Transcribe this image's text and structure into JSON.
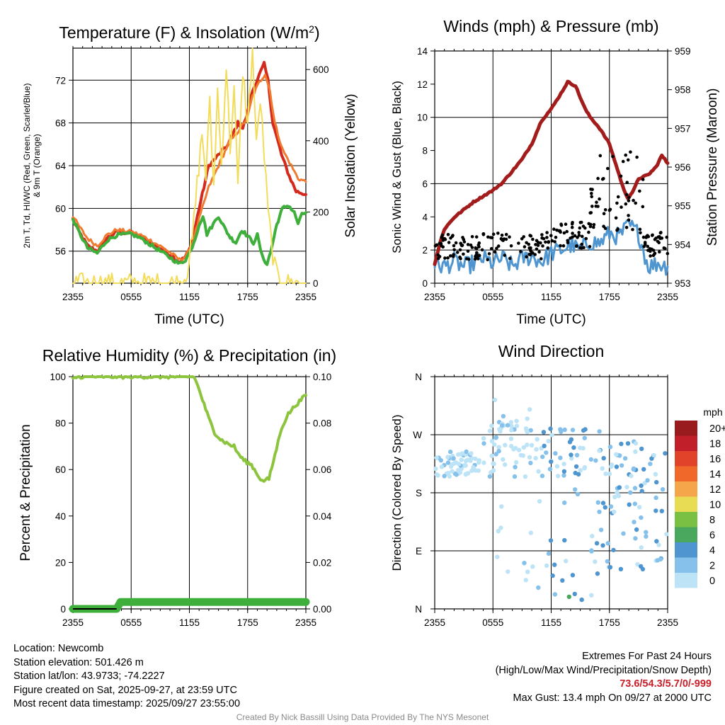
{
  "chart_data": [
    {
      "type": "line",
      "title": "Temperature (F) & Insolation (W/m2)",
      "title_main": "Temperature (F) & Insolation (W/m",
      "title_sup": "2",
      "title_end": ")",
      "xlabel": "Time (UTC)",
      "ylabel_left_lines": [
        "2m T, Td, HI/WC (Red, Green, Scarlet/Blue)",
        "& 9m T (Orange)"
      ],
      "ylabel_right": "Solar Insolation (Yellow)",
      "x_ticks": [
        "2355",
        "0555",
        "1155",
        "1755",
        "2355"
      ],
      "yticks_left": [
        56,
        60,
        64,
        68,
        72
      ],
      "yticks_right": [
        0,
        200,
        400,
        600
      ],
      "ylim_left": [
        53,
        75
      ],
      "ylim_right": [
        0,
        660
      ],
      "xlim_hours": [
        0,
        24
      ],
      "series": [
        {
          "name": "2m T",
          "axis": "left",
          "color": "#d42a1e",
          "width": 4,
          "points": [
            [
              0,
              59
            ],
            [
              0.5,
              58
            ],
            [
              1.5,
              56.5
            ],
            [
              2.5,
              56
            ],
            [
              3.5,
              57.2
            ],
            [
              4.5,
              57.8
            ],
            [
              6,
              57.7
            ],
            [
              7,
              57.3
            ],
            [
              8,
              56.8
            ],
            [
              9.5,
              56
            ],
            [
              11,
              55
            ],
            [
              11.6,
              55.5
            ],
            [
              12.2,
              56.5
            ],
            [
              13,
              60
            ],
            [
              14,
              64
            ],
            [
              15,
              65
            ],
            [
              16,
              66
            ],
            [
              17,
              68
            ],
            [
              17.5,
              67.5
            ],
            [
              18,
              69
            ],
            [
              18.5,
              71
            ],
            [
              19.2,
              72.5
            ],
            [
              19.7,
              73.5
            ],
            [
              20.1,
              72
            ],
            [
              20.6,
              68
            ],
            [
              21.5,
              65
            ],
            [
              22.3,
              63
            ],
            [
              23,
              61.6
            ],
            [
              24,
              61.3
            ]
          ]
        },
        {
          "name": "9m T",
          "axis": "left",
          "color": "#f07a30",
          "width": 3,
          "points": [
            [
              0,
              59.3
            ],
            [
              0.5,
              58.5
            ],
            [
              1.5,
              57.2
            ],
            [
              2.5,
              56.5
            ],
            [
              3.5,
              57.5
            ],
            [
              4.5,
              58
            ],
            [
              6,
              57.8
            ],
            [
              7,
              57.5
            ],
            [
              8,
              57
            ],
            [
              9.5,
              56.2
            ],
            [
              11,
              55.2
            ],
            [
              11.6,
              55.5
            ],
            [
              12.2,
              56.4
            ],
            [
              13,
              59
            ],
            [
              14,
              62
            ],
            [
              15,
              64
            ],
            [
              16,
              66
            ],
            [
              17,
              67.2
            ],
            [
              18,
              68.5
            ],
            [
              18.5,
              70.5
            ],
            [
              19.2,
              71.8
            ],
            [
              19.8,
              72.6
            ],
            [
              20.3,
              71
            ],
            [
              20.8,
              68
            ],
            [
              21.6,
              65.5
            ],
            [
              22.5,
              64
            ],
            [
              23.2,
              62.8
            ],
            [
              24,
              62.5
            ]
          ]
        },
        {
          "name": "Td",
          "axis": "left",
          "color": "#3daf3a",
          "width": 4,
          "points": [
            [
              0,
              59
            ],
            [
              0.5,
              58
            ],
            [
              1.5,
              56.3
            ],
            [
              2.5,
              55.8
            ],
            [
              3.5,
              57
            ],
            [
              4.5,
              57.5
            ],
            [
              6,
              57.6
            ],
            [
              7,
              57.2
            ],
            [
              8,
              56.6
            ],
            [
              9.5,
              55.7
            ],
            [
              11,
              54.8
            ],
            [
              11.6,
              55.2
            ],
            [
              12.1,
              56
            ],
            [
              12.6,
              57.2
            ],
            [
              13,
              58.5
            ],
            [
              13.4,
              59.3
            ],
            [
              13.8,
              57.6
            ],
            [
              14.3,
              58.3
            ],
            [
              15,
              59.3
            ],
            [
              15.6,
              58.2
            ],
            [
              16.2,
              57.3
            ],
            [
              16.8,
              56.8
            ],
            [
              17.4,
              58
            ],
            [
              18,
              57.4
            ],
            [
              18.6,
              56.8
            ],
            [
              19,
              57.5
            ],
            [
              19.5,
              55.5
            ],
            [
              20,
              54.8
            ],
            [
              20.4,
              56
            ],
            [
              21,
              58.5
            ],
            [
              21.6,
              60
            ],
            [
              22.2,
              60.3
            ],
            [
              22.8,
              59.6
            ],
            [
              23.2,
              58.6
            ],
            [
              23.6,
              59.4
            ],
            [
              24,
              59.6
            ]
          ]
        },
        {
          "name": "Solar Insolation",
          "axis": "right",
          "color": "#f2dc5a",
          "width": 2,
          "points": [
            [
              0,
              0
            ],
            [
              11.2,
              0
            ],
            [
              11.8,
              40
            ],
            [
              12.3,
              120
            ],
            [
              12.8,
              280
            ],
            [
              13.3,
              420
            ],
            [
              13.7,
              300
            ],
            [
              14.1,
              500
            ],
            [
              14.5,
              270
            ],
            [
              14.9,
              540
            ],
            [
              15.3,
              330
            ],
            [
              15.8,
              610
            ],
            [
              16.2,
              380
            ],
            [
              16.6,
              550
            ],
            [
              17,
              260
            ],
            [
              17.5,
              600
            ],
            [
              18,
              440
            ],
            [
              18.5,
              660
            ],
            [
              18.9,
              380
            ],
            [
              19.3,
              520
            ],
            [
              19.7,
              360
            ],
            [
              20.1,
              200
            ],
            [
              20.6,
              80
            ],
            [
              21,
              20
            ],
            [
              21.5,
              0
            ],
            [
              24,
              0
            ]
          ]
        }
      ]
    },
    {
      "type": "line",
      "title": "Winds (mph) & Pressure (mb)",
      "xlabel": "Time (UTC)",
      "ylabel_left": "Sonic Wind & Gust (Blue, Black)",
      "ylabel_right": "Station Pressure (Maroon)",
      "x_ticks": [
        "2355",
        "0555",
        "1155",
        "1755",
        "2355"
      ],
      "yticks_left": [
        0,
        2,
        4,
        6,
        8,
        10,
        12,
        14
      ],
      "yticks_right": [
        953,
        954,
        955,
        956,
        957,
        958,
        959
      ],
      "ylim_left": [
        0,
        14
      ],
      "ylim_right": [
        953,
        959
      ],
      "xlim_hours": [
        0,
        24
      ],
      "series": [
        {
          "name": "Sonic Wind",
          "axis": "left",
          "color": "#4f96d0",
          "width": 3,
          "points": [
            [
              0,
              1.2
            ],
            [
              1,
              1.0
            ],
            [
              2,
              1.3
            ],
            [
              3,
              1.0
            ],
            [
              4,
              1.2
            ],
            [
              5,
              1.5
            ],
            [
              6,
              1.2
            ],
            [
              7,
              1.5
            ],
            [
              8,
              1.0
            ],
            [
              9,
              1.5
            ],
            [
              10,
              1.6
            ],
            [
              11,
              1.3
            ],
            [
              12,
              1.8
            ],
            [
              13,
              2.0
            ],
            [
              14,
              2.3
            ],
            [
              15,
              2.0
            ],
            [
              16,
              2.5
            ],
            [
              17,
              2.4
            ],
            [
              18,
              3.0
            ],
            [
              19,
              2.8
            ],
            [
              20,
              3.5
            ],
            [
              21,
              3.0
            ],
            [
              22,
              1.0
            ],
            [
              23,
              1.2
            ],
            [
              24,
              1.0
            ]
          ]
        },
        {
          "name": "Station Pressure",
          "axis": "right",
          "color": "#a31c1c",
          "width": 5,
          "points": [
            [
              0,
              953.5
            ],
            [
              0.5,
              954.0
            ],
            [
              1,
              954.4
            ],
            [
              2,
              954.7
            ],
            [
              3,
              954.9
            ],
            [
              4,
              955.1
            ],
            [
              5,
              955.25
            ],
            [
              6,
              955.4
            ],
            [
              7,
              955.6
            ],
            [
              8,
              955.9
            ],
            [
              9,
              956.2
            ],
            [
              10,
              956.6
            ],
            [
              11,
              957.2
            ],
            [
              12,
              957.5
            ],
            [
              13,
              957.9
            ],
            [
              13.7,
              958.2
            ],
            [
              14.5,
              958.1
            ],
            [
              15,
              957.8
            ],
            [
              15.5,
              957.5
            ],
            [
              16,
              957.3
            ],
            [
              17,
              957.0
            ],
            [
              18,
              956.6
            ],
            [
              18.5,
              956.2
            ],
            [
              19,
              955.8
            ],
            [
              19.5,
              955.4
            ],
            [
              19.9,
              955.2
            ],
            [
              20.5,
              955.4
            ],
            [
              21,
              955.7
            ],
            [
              22,
              955.8
            ],
            [
              22.8,
              956.0
            ],
            [
              23.4,
              956.3
            ],
            [
              24,
              956.1
            ]
          ]
        }
      ],
      "gust_dots": {
        "name": "Gust",
        "color": "#000000"
      }
    },
    {
      "type": "line",
      "title": "Relative Humidity (%) & Precipitation (in)",
      "xlabel": "",
      "ylabel_left": "Percent & Precipitation",
      "x_ticks": [
        "2355",
        "0555",
        "1155",
        "1755",
        "2355"
      ],
      "yticks_left": [
        0,
        20,
        40,
        60,
        80,
        100
      ],
      "yticks_right": [
        "0.00",
        "0.02",
        "0.04",
        "0.06",
        "0.08",
        "0.10"
      ],
      "ylim_left": [
        0,
        100
      ],
      "ylim_right": [
        0,
        0.1
      ],
      "xlim_hours": [
        0,
        24
      ],
      "series": [
        {
          "name": "Relative Humidity",
          "axis": "left",
          "color": "#8dc43e",
          "width": 4,
          "points": [
            [
              0,
              99
            ],
            [
              0.5,
              100
            ],
            [
              12.5,
              100
            ],
            [
              13.2,
              92
            ],
            [
              14,
              82
            ],
            [
              14.6,
              76
            ],
            [
              15.2,
              73
            ],
            [
              16,
              71
            ],
            [
              16.6,
              70
            ],
            [
              17,
              67
            ],
            [
              17.6,
              64
            ],
            [
              18.4,
              62
            ],
            [
              19,
              58
            ],
            [
              19.5,
              55
            ],
            [
              20.2,
              56
            ],
            [
              20.8,
              66
            ],
            [
              21.5,
              78
            ],
            [
              22.2,
              84
            ],
            [
              23,
              88
            ],
            [
              24,
              92
            ]
          ]
        },
        {
          "name": "Precipitation",
          "axis": "right",
          "color": "#3daf3a",
          "width": 11,
          "points": [
            [
              0,
              0.0
            ],
            [
              4.5,
              0.0
            ],
            [
              4.9,
              0.003
            ],
            [
              24,
              0.003
            ]
          ]
        }
      ]
    },
    {
      "type": "scatter",
      "title": "Wind Direction",
      "xlabel": "",
      "ylabel_left": "Direction (Colored By Speed)",
      "x_ticks": [
        "2355",
        "0555",
        "1155",
        "1755",
        "2355"
      ],
      "y_ticks": [
        "N",
        "E",
        "S",
        "W",
        "N"
      ],
      "ylim": [
        0,
        360
      ],
      "xlim_hours": [
        0,
        24
      ],
      "colorbar": {
        "title": "mph",
        "labels": [
          "0",
          "2",
          "4",
          "6",
          "8",
          "10",
          "12",
          "14",
          "16",
          "18",
          "20+"
        ],
        "colors": [
          "#bde3f6",
          "#85c1ea",
          "#4f96d0",
          "#4aa75e",
          "#79c043",
          "#e8dc55",
          "#f6a64a",
          "#f0692b",
          "#e0432a",
          "#c1202a",
          "#991b1e"
        ]
      }
    }
  ],
  "info_left": [
    "Location: Newcomb",
    "Station elevation: 501.426 m",
    "Station lat/lon: 43.9733; -74.2227",
    "Figure created on Sat, 2025-09-27, at 23:59 UTC",
    "Most recent data timestamp: 2025/09/27 23:55:00"
  ],
  "info_right": {
    "title": "Extremes For Past 24 Hours",
    "subtitle": "(High/Low/Max Wind/Precipitation/Snow Depth)",
    "extremes": "73.6/54.3/5.7/0/-999",
    "max_gust": "Max Gust: 13.4 mph On 09/27 at 2000 UTC"
  },
  "credit": "Created By Nick Bassill Using Data Provided By The NYS Mesonet"
}
